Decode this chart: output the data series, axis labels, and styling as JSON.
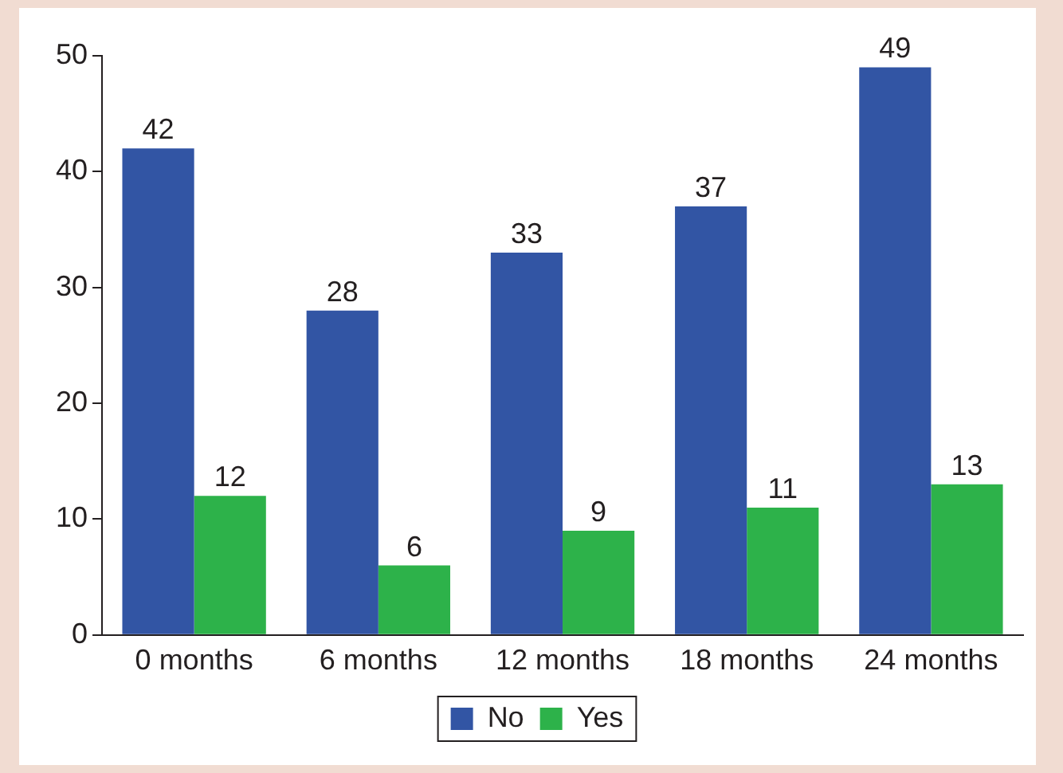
{
  "chart_data": {
    "type": "bar",
    "categories": [
      "0 months",
      "6 months",
      "12 months",
      "18 months",
      "24 months"
    ],
    "series": [
      {
        "name": "No",
        "color": "#3255a4",
        "values": [
          42,
          28,
          33,
          37,
          49
        ]
      },
      {
        "name": "Yes",
        "color": "#2db24a",
        "values": [
          12,
          6,
          9,
          11,
          13
        ]
      }
    ],
    "ylim": [
      0,
      50
    ],
    "yticks": [
      0,
      10,
      20,
      30,
      40,
      50
    ],
    "grid": false,
    "legend": "bottom",
    "data_labels": true
  }
}
